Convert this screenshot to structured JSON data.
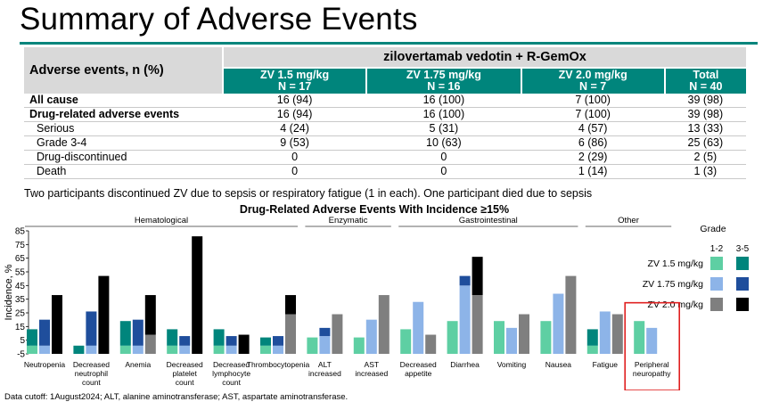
{
  "slide_title": "Summary of Adverse Events",
  "table": {
    "row_header": "Adverse events, n (%)",
    "group_header": "zilovertamab vedotin + R-GemOx",
    "columns": [
      {
        "dose": "ZV 1.5 mg/kg",
        "n": "N = 17"
      },
      {
        "dose": "ZV 1.75 mg/kg",
        "n": "N = 16"
      },
      {
        "dose": "ZV 2.0 mg/kg",
        "n": "N = 7"
      },
      {
        "dose": "Total",
        "n": "N = 40"
      }
    ],
    "rows": [
      {
        "label": "All cause",
        "bold": true,
        "values": [
          "16 (94)",
          "16 (100)",
          "7 (100)",
          "39 (98)"
        ]
      },
      {
        "label": "Drug-related adverse events",
        "bold": true,
        "values": [
          "16 (94)",
          "16 (100)",
          "7 (100)",
          "39 (98)"
        ]
      },
      {
        "label": "Serious",
        "bold": false,
        "values": [
          "4 (24)",
          "5 (31)",
          "4 (57)",
          "13 (33)"
        ]
      },
      {
        "label": "Grade 3-4",
        "bold": false,
        "values": [
          "9 (53)",
          "10 (63)",
          "6 (86)",
          "25 (63)"
        ]
      },
      {
        "label": "Drug-discontinued",
        "bold": false,
        "values": [
          "0",
          "0",
          "2 (29)",
          "2 (5)"
        ]
      },
      {
        "label": "Death",
        "bold": false,
        "values": [
          "0",
          "0",
          "1 (14)",
          "1 (3)"
        ]
      }
    ]
  },
  "note": "Two participants discontinued ZV due to sepsis or respiratory fatigue (1 in each). One participant died due to sepsis",
  "footnote": "Data cutoff: 1August2024; ALT, alanine aminotransferase; AST, aspartate aminotransferase.",
  "colors": {
    "zv15_low": "#5ecfa3",
    "zv15_high": "#00857c",
    "zv175_low": "#8db4e8",
    "zv175_high": "#1f4e9c",
    "zv20_low": "#7f7f7f",
    "zv20_high": "#000000",
    "highlight_box": "#e02020",
    "rule": "#00857c"
  },
  "chart_data": {
    "type": "bar",
    "stacked": true,
    "title": "Drug-Related Adverse Events With Incidence ≥15%",
    "ylabel": "Incidence, %",
    "ylim": [
      -5,
      85
    ],
    "yticks": [
      -5,
      5,
      15,
      25,
      35,
      45,
      55,
      65,
      75,
      85
    ],
    "categories": [
      "Neutropenia",
      "Decreased neutrophil count",
      "Anemia",
      "Decreased platelet count",
      "Decreased lymphocyte count",
      "Thrombocytopenia",
      "ALT increased",
      "AST increased",
      "Decreased appetite",
      "Diarrhea",
      "Vomiting",
      "Nausea",
      "Fatigue",
      "Peripheral neuropathy"
    ],
    "category_lines": [
      [
        "Neutropenia"
      ],
      [
        "Decreased",
        "neutrophil",
        "count"
      ],
      [
        "Anemia"
      ],
      [
        "Decreased",
        "platelet",
        "count"
      ],
      [
        "Decreased",
        "lymphocyte",
        "count"
      ],
      [
        "Thrombocytopenia"
      ],
      [
        "ALT",
        "increased"
      ],
      [
        "AST",
        "increased"
      ],
      [
        "Decreased",
        "appetite"
      ],
      [
        "Diarrhea"
      ],
      [
        "Vomiting"
      ],
      [
        "Nausea"
      ],
      [
        "Fatigue"
      ],
      [
        "Peripheral",
        "neuropathy"
      ]
    ],
    "groups": [
      {
        "name": "Hematological",
        "from": 0,
        "to": 5
      },
      {
        "name": "Enzymatic",
        "from": 6,
        "to": 7
      },
      {
        "name": "Gastrointestinal",
        "from": 8,
        "to": 11
      },
      {
        "name": "Other",
        "from": 12,
        "to": 13
      }
    ],
    "highlight_category": "Peripheral neuropathy",
    "series": [
      {
        "name": "ZV 1.5 mg/kg",
        "grade_1_2": [
          6,
          0,
          6,
          6,
          6,
          6,
          12,
          12,
          18,
          24,
          24,
          24,
          6,
          24
        ],
        "grade_3_5": [
          12,
          6,
          18,
          12,
          12,
          6,
          0,
          0,
          0,
          0,
          0,
          0,
          12,
          0
        ]
      },
      {
        "name": "ZV 1.75 mg/kg",
        "grade_1_2": [
          6,
          6,
          6,
          6,
          6,
          6,
          13,
          25,
          38,
          50,
          19,
          44,
          31,
          19
        ],
        "grade_3_5": [
          19,
          25,
          19,
          7,
          7,
          7,
          6,
          0,
          0,
          7,
          0,
          0,
          0,
          0
        ]
      },
      {
        "name": "ZV 2.0 mg/kg",
        "grade_1_2": [
          0,
          0,
          14,
          0,
          0,
          29,
          29,
          43,
          14,
          43,
          29,
          57,
          29,
          0
        ],
        "grade_3_5": [
          43,
          57,
          29,
          86,
          14,
          14,
          0,
          0,
          0,
          28,
          0,
          0,
          0,
          0
        ]
      }
    ],
    "legend": {
      "title": "Grade",
      "columns": [
        "1-2",
        "3-5"
      ],
      "placement": "right"
    }
  }
}
